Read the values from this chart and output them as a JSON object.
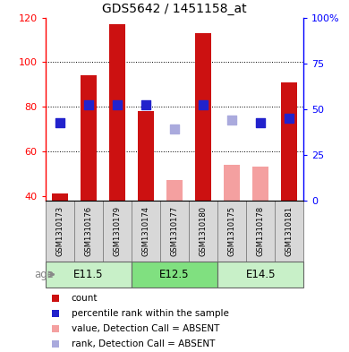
{
  "title": "GDS5642 / 1451158_at",
  "samples": [
    "GSM1310173",
    "GSM1310176",
    "GSM1310179",
    "GSM1310174",
    "GSM1310177",
    "GSM1310180",
    "GSM1310175",
    "GSM1310178",
    "GSM1310181"
  ],
  "age_groups": [
    {
      "label": "E11.5",
      "start": 0,
      "end": 3
    },
    {
      "label": "E12.5",
      "start": 3,
      "end": 6
    },
    {
      "label": "E14.5",
      "start": 6,
      "end": 9
    }
  ],
  "count_values": [
    41,
    94,
    117,
    78,
    null,
    113,
    null,
    null,
    91
  ],
  "count_absent_values": [
    null,
    null,
    null,
    null,
    47,
    null,
    54,
    53,
    null
  ],
  "rank_values": [
    73,
    81,
    81,
    81,
    null,
    81,
    null,
    73,
    75
  ],
  "rank_absent_values": [
    null,
    null,
    null,
    null,
    70,
    null,
    74,
    null,
    null
  ],
  "ylim_left": [
    38,
    120
  ],
  "ylim_right": [
    0,
    100
  ],
  "left_ticks": [
    40,
    60,
    80,
    100,
    120
  ],
  "right_ticks": [
    0,
    25,
    50,
    75,
    100
  ],
  "right_tick_labels": [
    "0",
    "25",
    "50",
    "75",
    "100%"
  ],
  "grid_lines": [
    60,
    80,
    100
  ],
  "bar_color_present": "#cc1111",
  "bar_color_absent": "#f4a0a0",
  "rank_color_present": "#2222cc",
  "rank_color_absent": "#aaaadd",
  "plot_bg": "#ffffff",
  "cell_bg": "#d8d8d8",
  "cell_border": "#888888",
  "age_bg_e115": "#c8f0c8",
  "age_bg_e125": "#80e080",
  "age_bg_e145": "#c8f0c8",
  "bar_width": 0.55,
  "rank_marker_size": 55
}
